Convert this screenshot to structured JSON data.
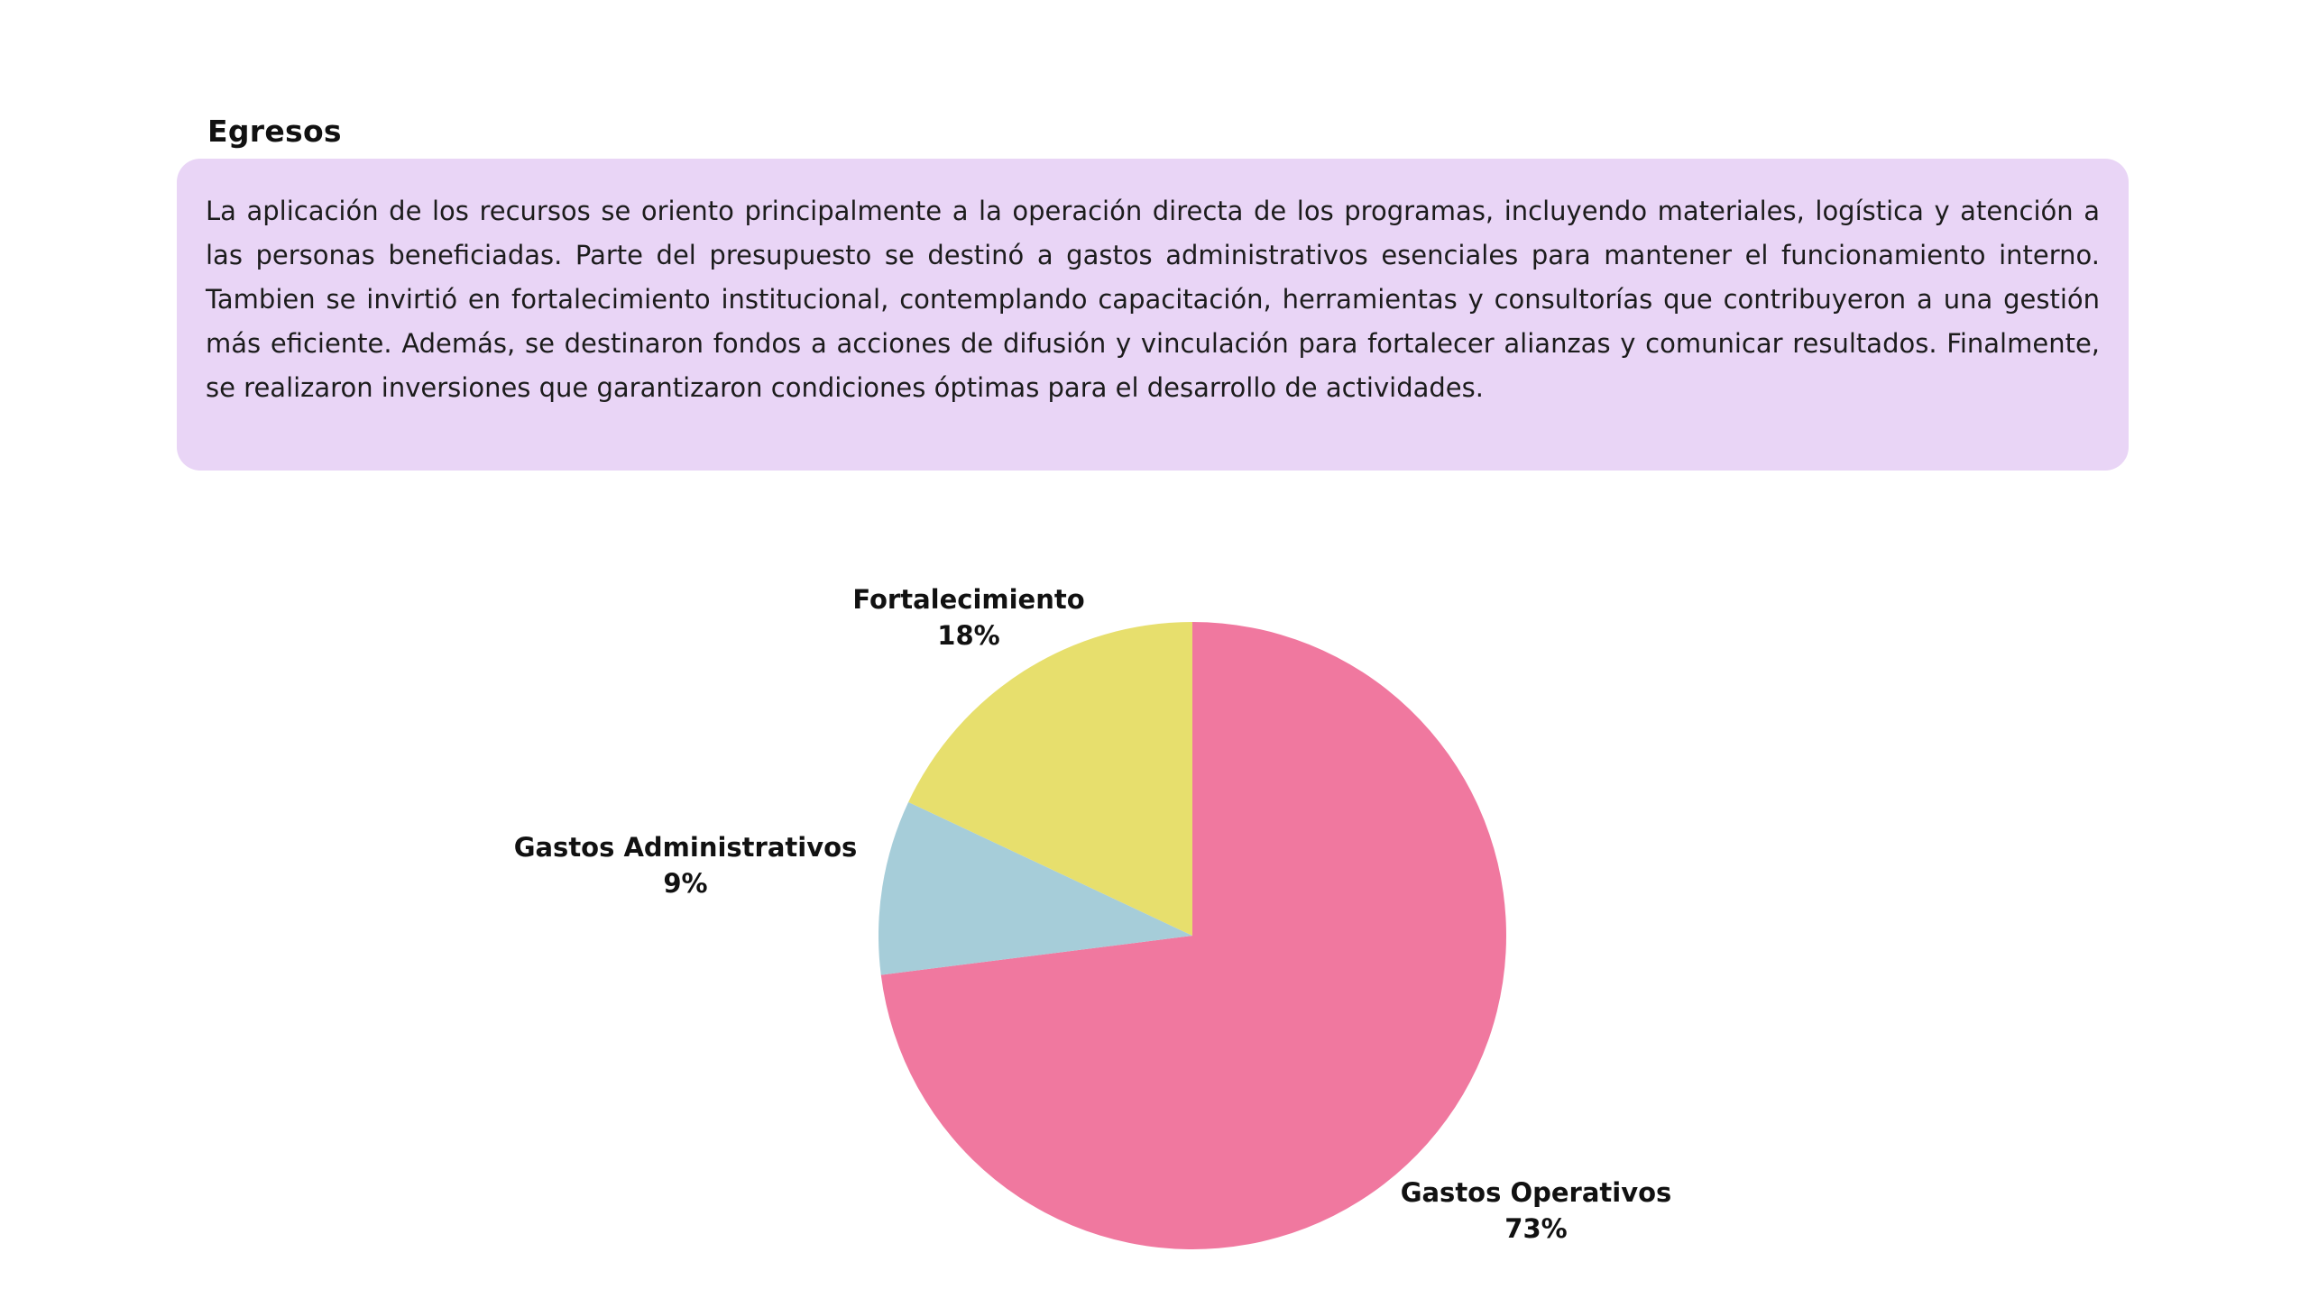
{
  "page": {
    "title": "Egresos",
    "description": "La aplicación de los recursos se oriento principalmente a la operación directa de los programas, incluyendo materiales, logística y atención a las personas beneficiadas. Parte del presupuesto se destinó a gastos administrativos esenciales para mantener el funcionamiento interno. Tambien se invirtió en fortalecimiento institucional, contemplando capacitación, herramientas y consultorías que contribuyeron a una gestión más eficiente. Además, se destinaron fondos a acciones de difusión y vinculación para fortalecer alianzas y comunicar resultados. Finalmente, se realizaron inversiones que garantizaron condiciones óptimas para el desarrollo de actividades."
  },
  "colors": {
    "background": "#ffffff",
    "panel_bg": "#e9d5f6",
    "text": "#1c1c1c",
    "label_text": "#111111"
  },
  "chart_data": {
    "type": "pie",
    "title": "Egresos",
    "start_angle_deg": 0,
    "direction": "clockwise",
    "legend_position": "labels-outside",
    "slices": [
      {
        "label": "Gastos Operativos",
        "value": 73,
        "pct_label": "73%",
        "color": "#f0789f"
      },
      {
        "label": "Gastos Administrativos",
        "value": 9,
        "pct_label": "9%",
        "color": "#a6cdd9"
      },
      {
        "label": "Fortalecimiento",
        "value": 18,
        "pct_label": "18%",
        "color": "#e7df6d"
      }
    ]
  }
}
